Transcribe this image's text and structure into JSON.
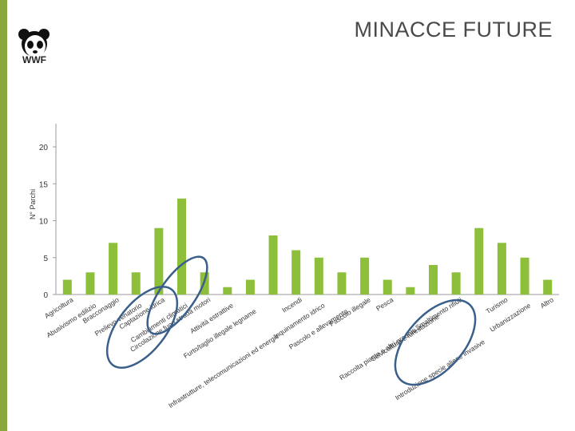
{
  "slide": {
    "title": "MINACCE FUTURE",
    "logo_text": "WWF"
  },
  "colors": {
    "accent_bar": "#8aa63f",
    "bar_fill": "#8dbf3a",
    "highlight_ellipse": "#3a5f8a"
  },
  "chart_data": {
    "type": "bar",
    "ylabel": "N° Parchi",
    "xlabel": "",
    "ylim": [
      0,
      20
    ],
    "yticks": [
      0,
      5,
      10,
      15,
      20
    ],
    "grid": false,
    "legend": "none",
    "categories": [
      "Agricoltura",
      "Abusivismo edilizio",
      "Bracconaggio",
      "Prelievo venatorio",
      "Captazione idrica",
      "Cambiamenti climatici",
      "Circolazione fuori strada motori",
      "Attività estrattive",
      "Furto/taglio illegale legname",
      "Infrastrutture, telecomunicazioni ed energie",
      "Incendi",
      "Inquinamento idrico",
      "Pascolo e allevamento",
      "Pascolo illegale",
      "Pesca",
      "Raccolta piante e altri prodotti",
      "Selvicoltura e forestazione",
      "Smaltimento rifiuti",
      "Introduzione specie aliene invasive",
      "Turismo",
      "Urbanizzazione",
      "Altro"
    ],
    "values": [
      2,
      3,
      7,
      3,
      9,
      13,
      3,
      1,
      2,
      8,
      6,
      5,
      3,
      5,
      2,
      1,
      4,
      3,
      9,
      7,
      5,
      2
    ]
  }
}
